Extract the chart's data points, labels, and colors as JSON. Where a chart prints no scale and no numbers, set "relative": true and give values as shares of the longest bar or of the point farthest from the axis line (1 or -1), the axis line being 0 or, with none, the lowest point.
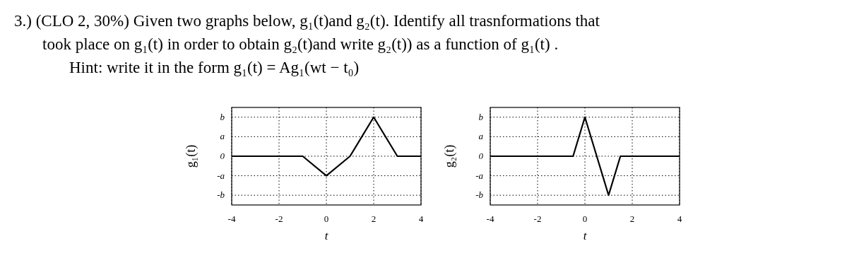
{
  "chart_data": [
    {
      "type": "line",
      "relative": true,
      "annotations": [
        "3.) (CLO 2, 30%) Given two graphs below, g₁(t)and g₂(t). Identify all trasnformations that",
        "took place on g₁(t) in order to obtain g₂(t)and write g₂(t)) as a function of g₁(t) .",
        "Hint: write it in the form g₁(t) = Ag₁(wt − t₀)",
        "b",
        "a",
        "0",
        "-a",
        "-b"
      ],
      "xlabel": "t",
      "ylabel": "g₁(t)",
      "x": [
        -4,
        -1,
        0,
        1,
        2,
        3,
        4
      ],
      "series": [
        {
          "color": "#000000",
          "values": [
            0,
            0,
            -0.5,
            0,
            1,
            0,
            0
          ]
        }
      ],
      "xlim": [
        -4,
        4
      ],
      "xticks": [
        -4,
        -2,
        0,
        2,
        4
      ],
      "grid": true,
      "marker": "none",
      "line_style": "solid"
    },
    {
      "type": "line",
      "relative": true,
      "annotations": [
        "b",
        "a",
        "0",
        "-a",
        "-b"
      ],
      "xlabel": "t",
      "ylabel": "g₂(t)",
      "x": [
        -4,
        -0.5,
        0,
        0.5,
        1,
        1.5,
        4
      ],
      "series": [
        {
          "color": "#000000",
          "values": [
            0,
            0,
            1,
            0,
            -1,
            0,
            0
          ]
        }
      ],
      "xlim": [
        -4,
        4
      ],
      "xticks": [
        -4,
        -2,
        0,
        2,
        4
      ],
      "grid": true,
      "marker": "none",
      "line_style": "solid"
    }
  ]
}
